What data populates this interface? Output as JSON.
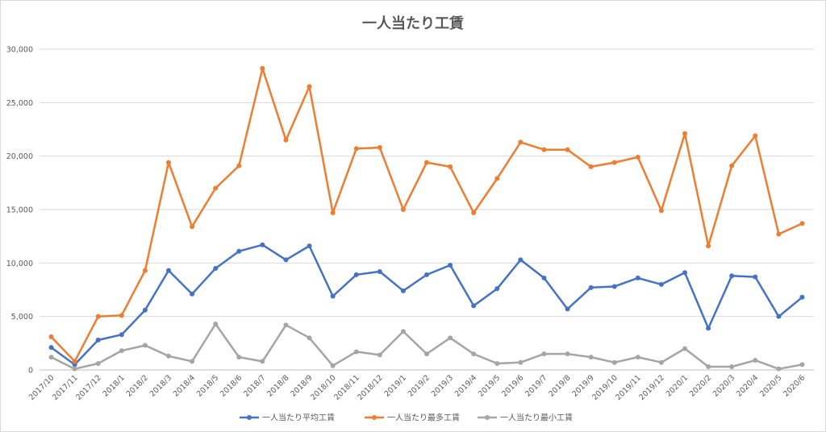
{
  "chart_data": {
    "type": "line",
    "title": "一人当たり工賃",
    "xlabel": "",
    "ylabel": "",
    "ylim": [
      0,
      30000
    ],
    "y_ticks": [
      "0",
      "5,000",
      "10,000",
      "15,000",
      "20,000",
      "25,000",
      "30,000"
    ],
    "y_tick_values": [
      0,
      5000,
      10000,
      15000,
      20000,
      25000,
      30000
    ],
    "grid": "horizontal",
    "legend_position": "bottom",
    "categories": [
      "2017/10",
      "2017/11",
      "2017/12",
      "2018/1",
      "2018/2",
      "2018/3",
      "2018/4",
      "2018/5",
      "2018/6",
      "2018/7",
      "2018/8",
      "2018/9",
      "2018/10",
      "2018/11",
      "2018/12",
      "2019/1",
      "2019/2",
      "2019/3",
      "2019/4",
      "2019/5",
      "2019/6",
      "2019/7",
      "2019/8",
      "2019/9",
      "2019/10",
      "2019/11",
      "2019/12",
      "2020/1",
      "2020/2",
      "2020/3",
      "2020/4",
      "2020/5",
      "2020/6"
    ],
    "series": [
      {
        "name": "一人当たり平均工賃",
        "color": "#4472c4",
        "values": [
          2100,
          500,
          2800,
          3300,
          5600,
          9300,
          7100,
          9500,
          11100,
          11700,
          10300,
          11600,
          6900,
          8900,
          9200,
          7400,
          8900,
          9800,
          6000,
          7600,
          10300,
          8600,
          5700,
          7700,
          7800,
          8600,
          8000,
          9100,
          3900,
          8800,
          8700,
          5000,
          6800
        ]
      },
      {
        "name": "一人当たり最多工賃",
        "color": "#ed7d31",
        "values": [
          3100,
          800,
          5000,
          5100,
          9300,
          19400,
          13400,
          17000,
          19100,
          28200,
          21500,
          26500,
          14700,
          20700,
          20800,
          15000,
          19400,
          19000,
          14700,
          17900,
          21300,
          20600,
          20600,
          19000,
          19400,
          19900,
          14900,
          22100,
          11600,
          19100,
          21900,
          12700,
          13700
        ]
      },
      {
        "name": "一人当たり最小工賃",
        "color": "#a5a5a5",
        "values": [
          1200,
          100,
          600,
          1800,
          2300,
          1300,
          800,
          4300,
          1200,
          800,
          4200,
          3000,
          400,
          1700,
          1400,
          3600,
          1500,
          3000,
          1500,
          600,
          700,
          1500,
          1500,
          1200,
          700,
          1200,
          700,
          2000,
          300,
          300,
          900,
          100,
          500
        ]
      }
    ]
  }
}
